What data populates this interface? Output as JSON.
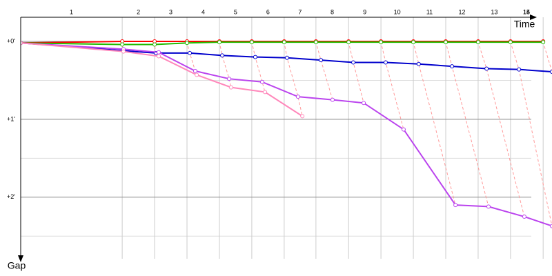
{
  "chart_data": {
    "type": "line",
    "x_label": "Time",
    "y_label": "Gap",
    "xlim": [
      0,
      24.6
    ],
    "ylim": [
      -0.31,
      2.79
    ],
    "xticks": [
      4.7,
      6.2,
      7.7,
      9.2,
      10.7,
      12.2,
      13.67,
      15.18,
      16.68,
      18.18,
      19.68,
      21.18,
      22.68,
      24.19
    ],
    "laps": [
      1,
      2,
      3,
      4,
      5,
      6,
      7,
      8,
      9,
      10,
      11,
      12,
      13,
      14,
      15
    ],
    "yticks": [
      {
        "value": 0,
        "label": "+0'"
      },
      {
        "value": 1,
        "label": "+1'"
      },
      {
        "value": 2,
        "label": "+2'"
      }
    ],
    "minor_yticks": [
      0.5,
      1.5,
      2.5
    ],
    "grid": true,
    "series": [
      {
        "color": "#ff0000",
        "x": [
          0,
          4.7,
          6.2,
          7.7,
          9.2,
          10.7,
          12.2,
          13.67,
          15.18,
          16.68,
          18.18,
          19.68,
          21.18,
          22.68,
          24.19
        ],
        "values": [
          0.02,
          0,
          0,
          0,
          0,
          0,
          0,
          0,
          0,
          0,
          0,
          0,
          0,
          0,
          0
        ]
      },
      {
        "color": "#22bb00",
        "x": [
          0,
          4.7,
          6.2,
          7.7,
          9.2,
          10.7,
          12.2,
          13.67,
          15.18,
          16.68,
          18.18,
          19.68,
          21.18,
          22.68,
          24.19
        ],
        "values": [
          0.02,
          0.04,
          0.04,
          0.02,
          0.01,
          0.01,
          0.01,
          0.01,
          0.01,
          0.01,
          0.01,
          0.01,
          0.01,
          0.01,
          0.01
        ]
      },
      {
        "color": "#0000cc",
        "x": [
          0,
          4.76,
          6.26,
          7.83,
          9.33,
          10.86,
          12.33,
          13.9,
          15.4,
          16.9,
          18.43,
          19.97,
          21.57,
          23.07,
          24.6
        ],
        "values": [
          0.02,
          0.12,
          0.15,
          0.15,
          0.18,
          0.2,
          0.21,
          0.24,
          0.27,
          0.27,
          0.29,
          0.32,
          0.35,
          0.36,
          0.39
        ]
      },
      {
        "color": "#bb44ee",
        "x": [
          0,
          4.76,
          6.39,
          8.08,
          9.65,
          11.18,
          12.84,
          14.44,
          15.88,
          17.73,
          20.13,
          21.66,
          23.32,
          24.6
        ],
        "values": [
          0.02,
          0.1,
          0.14,
          0.38,
          0.48,
          0.52,
          0.71,
          0.75,
          0.79,
          1.13,
          2.1,
          2.12,
          2.25,
          2.37
        ]
      },
      {
        "color": "#ff88bb",
        "x": [
          0,
          4.76,
          6.39,
          8.15,
          9.74,
          11.31,
          13.04
        ],
        "values": [
          0.02,
          0.13,
          0.19,
          0.43,
          0.59,
          0.65,
          0.96
        ]
      }
    ]
  }
}
